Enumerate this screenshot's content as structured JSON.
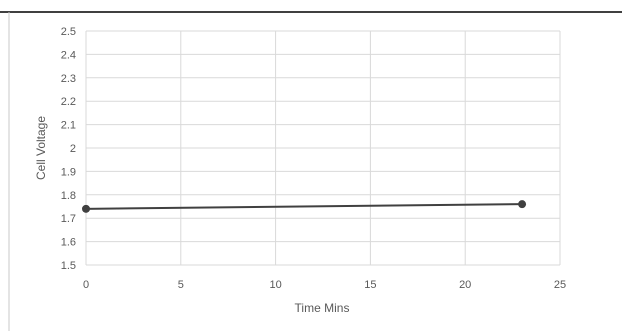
{
  "chart_data": {
    "type": "scatter",
    "title": "",
    "xlabel": "Time Mins",
    "ylabel": "Cell Voltage",
    "xlim": [
      0,
      25
    ],
    "ylim": [
      1.5,
      2.5
    ],
    "x_ticks": [
      "0",
      "5",
      "10",
      "15",
      "20",
      "25"
    ],
    "y_ticks": [
      "1.5",
      "1.6",
      "1.7",
      "1.8",
      "1.9",
      "2",
      "2.1",
      "2.2",
      "2.3",
      "2.4",
      "2.5"
    ],
    "grid": true,
    "legend": "none",
    "series": [
      {
        "points": [
          {
            "x": 0,
            "y": 1.74
          },
          {
            "x": 23,
            "y": 1.76
          }
        ],
        "color": "#404040"
      }
    ],
    "colors": {
      "gridline": "#d9d9d9",
      "axis_text": "#595959",
      "line": "#404040",
      "frame": "#000000"
    }
  }
}
